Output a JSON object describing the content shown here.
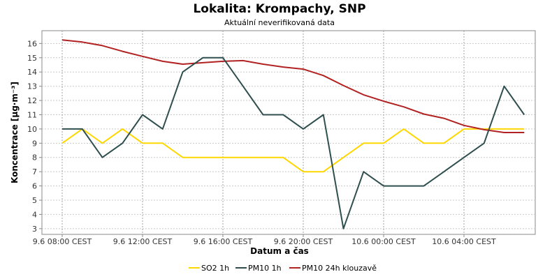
{
  "chart_data": {
    "type": "line",
    "title": "Lokalita: Krompachy, SNP",
    "subtitle": "Aktuální neverifikovaná data",
    "xlabel": "Datum a čas",
    "ylabel": "Koncentrace [µg·m⁻³]",
    "ylim": [
      2.6,
      16.9
    ],
    "yticks": [
      3,
      4,
      5,
      6,
      7,
      8,
      9,
      10,
      11,
      12,
      13,
      14,
      15,
      16
    ],
    "xtick_labels": [
      "9.6 08:00 CEST",
      "9.6 12:00 CEST",
      "9.6 16:00 CEST",
      "9.6 20:00 CEST",
      "10.6 00:00 CEST",
      "10.6 04:00 CEST"
    ],
    "x": [
      "9.6 08:00",
      "9.6 09:00",
      "9.6 10:00",
      "9.6 11:00",
      "9.6 12:00",
      "9.6 13:00",
      "9.6 14:00",
      "9.6 15:00",
      "9.6 16:00",
      "9.6 17:00",
      "9.6 18:00",
      "9.6 19:00",
      "9.6 20:00",
      "9.6 21:00",
      "9.6 22:00",
      "9.6 23:00",
      "10.6 00:00",
      "10.6 01:00",
      "10.6 02:00",
      "10.6 03:00",
      "10.6 04:00",
      "10.6 05:00",
      "10.6 06:00",
      "10.6 07:00"
    ],
    "grid": true,
    "legend_position": "bottom",
    "series": [
      {
        "name": "SO2 1h",
        "color": "#ffd700",
        "values": [
          9,
          10,
          9,
          10,
          9,
          9,
          8,
          8,
          8,
          8,
          8,
          8,
          7,
          7,
          8,
          9,
          9,
          10,
          9,
          9,
          10,
          10,
          10,
          10
        ]
      },
      {
        "name": "PM10 1h",
        "color": "#2f4f4f",
        "values": [
          10,
          10,
          8,
          9,
          11,
          10,
          14,
          15,
          15,
          13,
          11,
          11,
          10,
          11,
          3,
          7,
          6,
          6,
          6,
          7,
          8,
          9,
          13,
          11
        ]
      },
      {
        "name": "PM10 24h klouzavě",
        "color": "#b22222",
        "values": [
          16.25,
          16.1,
          15.85,
          15.45,
          15.1,
          14.75,
          14.55,
          14.65,
          14.75,
          14.8,
          14.55,
          14.35,
          14.2,
          13.75,
          13.05,
          12.4,
          11.95,
          11.55,
          11.05,
          10.75,
          10.25,
          9.95,
          9.75,
          9.75
        ]
      }
    ]
  }
}
